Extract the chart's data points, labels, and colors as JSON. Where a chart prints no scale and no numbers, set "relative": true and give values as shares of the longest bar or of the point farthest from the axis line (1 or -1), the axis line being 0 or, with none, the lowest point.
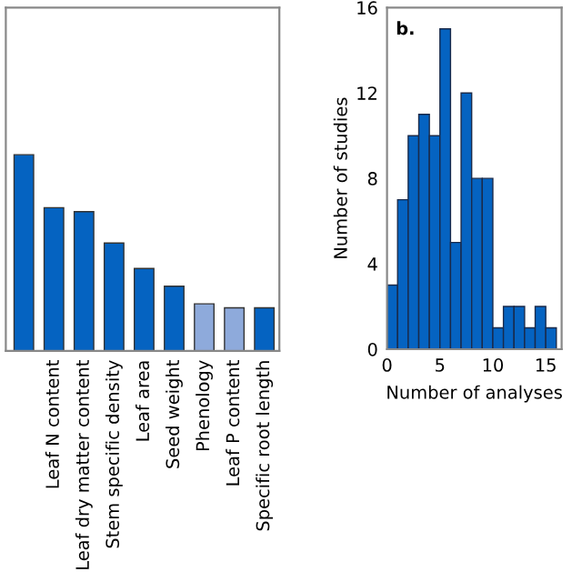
{
  "chart_data": [
    {
      "type": "bar",
      "relative": true,
      "tick_labels": "x",
      "grid": false,
      "legend": false,
      "categories": [
        null,
        "Leaf N content",
        "Leaf dry matter content",
        "Stem specific density",
        "Leaf area",
        "Seed weight",
        "Phenology",
        "Leaf P content",
        "Specific root length"
      ],
      "values": [
        1,
        0.73,
        0.71,
        0.55,
        0.42,
        0.33,
        0.24,
        0.22,
        0.22
      ],
      "colors": [
        "#0563c1",
        "#0563c1",
        "#0563c1",
        "#0563c1",
        "#0563c1",
        "#0563c1",
        "#8eaadb",
        "#8eaadb",
        "#0563c1"
      ]
    },
    {
      "type": "histogram",
      "grid": false,
      "legend": false,
      "color": "#0563c1",
      "bins": [
        0,
        1,
        2,
        3,
        4,
        5,
        6,
        7,
        8,
        9,
        10,
        11,
        12,
        13,
        14,
        15,
        16
      ],
      "values": [
        3,
        7,
        10,
        11,
        10,
        15,
        5,
        12,
        8,
        8,
        1,
        2,
        2,
        1,
        2,
        1
      ],
      "xlim": [
        0,
        16.5
      ],
      "ylim": [
        0,
        16
      ],
      "xticks": [
        0,
        5,
        10,
        15
      ],
      "yticks": [
        0,
        4,
        8,
        12,
        16
      ],
      "xlabel": "Number of analyses",
      "ylabel": "Number of studies",
      "annotations": [
        "b."
      ]
    }
  ]
}
